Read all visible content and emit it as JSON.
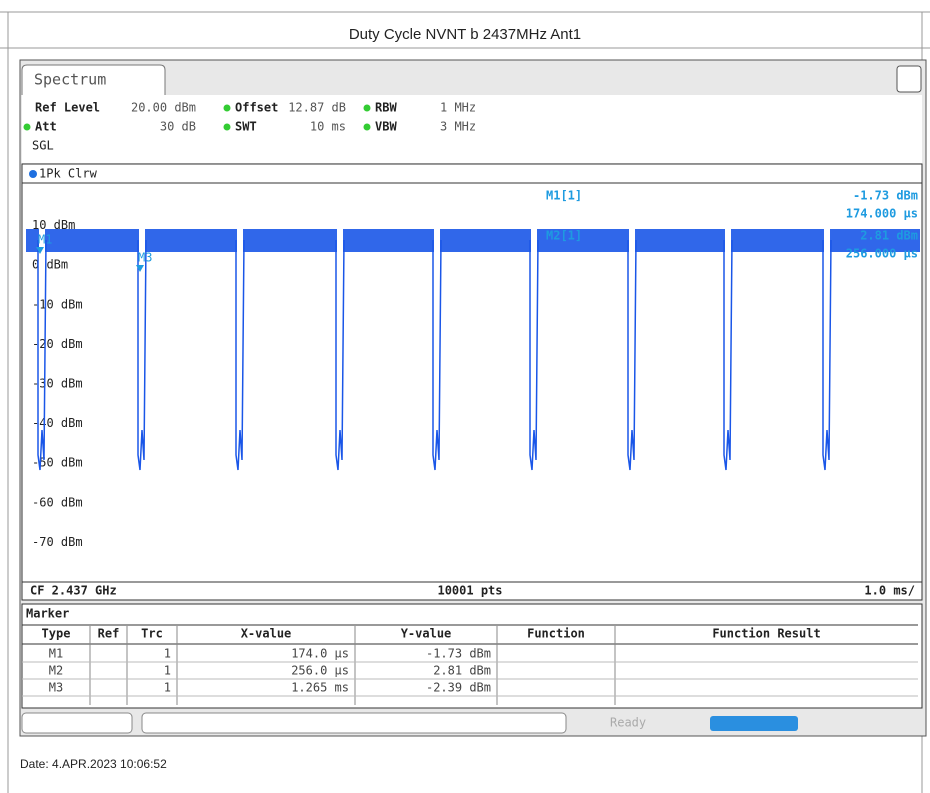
{
  "header": {
    "title": "Duty Cycle NVNT b 2437MHz Ant1"
  },
  "screen": {
    "tab": "Spectrum",
    "settings": [
      [
        "Ref Level",
        "20.00 dBm",
        "Offset",
        "12.87 dB",
        "RBW",
        "1 MHz"
      ],
      [
        "Att",
        "30 dB",
        "SWT",
        "10 ms",
        "VBW",
        "3 MHz"
      ]
    ],
    "mode": "SGL",
    "trace_label": "1Pk Clrw",
    "y_labels": [
      "10 dBm",
      "0 dBm",
      "-10 dBm",
      "-20 dBm",
      "-30 dBm",
      "-40 dBm",
      "-50 dBm",
      "-60 dBm",
      "-70 dBm"
    ],
    "markers_on_plot": [
      "M1",
      "M3"
    ],
    "marker_info": [
      {
        "name": "M1[1]",
        "level": "-1.73 dBm",
        "time": "174.000 µs"
      },
      {
        "name": "M2[1]",
        "level": "2.81 dBm",
        "time": "256.000 µs"
      }
    ],
    "footer": {
      "center_freq": "CF 2.437 GHz",
      "points": "10001 pts",
      "span": "1.0 ms/"
    }
  },
  "table": {
    "title": "Marker",
    "headers": [
      "Type",
      "Ref",
      "Trc",
      "X-value",
      "Y-value",
      "Function",
      "Function Result"
    ],
    "rows": [
      [
        "M1",
        "",
        "1",
        "174.0 µs",
        "-1.73 dBm",
        "",
        ""
      ],
      [
        "M2",
        "",
        "1",
        "256.0 µs",
        "2.81 dBm",
        "",
        ""
      ],
      [
        "M3",
        "",
        "1",
        "1.265 ms",
        "-2.39 dBm",
        "",
        ""
      ]
    ]
  },
  "status": {
    "ready": "Ready"
  },
  "date": "Date: 4.APR.2023  10:06:52"
}
